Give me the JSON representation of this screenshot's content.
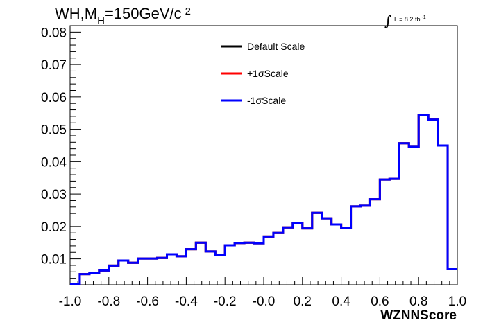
{
  "chart_data": {
    "type": "line",
    "title": {
      "prefix": "WH,M",
      "subscript": "H",
      "value": "=150GeV/c",
      "superscript": "2"
    },
    "luminosity": {
      "integral_sign": "∫",
      "text": "L = 8.2 fb",
      "exponent": "-1"
    },
    "xlabel": "WZNNScore",
    "ylabel": "",
    "xlim": [
      -1.0,
      1.0
    ],
    "ylim": [
      0.002,
      0.082
    ],
    "x_ticks": [
      "-1.0",
      "-0.8",
      "-0.6",
      "-0.4",
      "-0.2",
      "-0.0",
      "0.2",
      "0.4",
      "0.6",
      "0.8",
      "1.0"
    ],
    "y_ticks": [
      "0.01",
      "0.02",
      "0.03",
      "0.04",
      "0.05",
      "0.06",
      "0.07",
      "0.08"
    ],
    "grid": false,
    "legend_position": "top-center",
    "bin_edges": [
      -1.0,
      -0.95,
      -0.9,
      -0.85,
      -0.8,
      -0.75,
      -0.7,
      -0.65,
      -0.6,
      -0.55,
      -0.5,
      -0.45,
      -0.4,
      -0.35,
      -0.3,
      -0.25,
      -0.2,
      -0.15,
      -0.1,
      -0.05,
      0.0,
      0.05,
      0.1,
      0.15,
      0.2,
      0.25,
      0.3,
      0.35,
      0.4,
      0.45,
      0.5,
      0.55,
      0.6,
      0.65,
      0.7,
      0.75,
      0.8,
      0.85,
      0.9,
      0.95,
      1.0
    ],
    "series": [
      {
        "name": "Default Scale",
        "color": "#000000",
        "values": [
          0.0023,
          0.0053,
          0.0056,
          0.0064,
          0.0079,
          0.0095,
          0.0088,
          0.0101,
          0.0101,
          0.0103,
          0.0114,
          0.0108,
          0.013,
          0.015,
          0.0123,
          0.0111,
          0.0142,
          0.0149,
          0.015,
          0.0148,
          0.0169,
          0.018,
          0.0197,
          0.0211,
          0.0194,
          0.0242,
          0.0225,
          0.0206,
          0.0195,
          0.0262,
          0.0264,
          0.0284,
          0.0345,
          0.0347,
          0.0457,
          0.0446,
          0.0543,
          0.053,
          0.045,
          0.0068
        ]
      },
      {
        "name": "+1σScale",
        "color": "#ff0000",
        "values": [
          0.0023,
          0.0053,
          0.0056,
          0.0064,
          0.0079,
          0.0095,
          0.0088,
          0.0101,
          0.0101,
          0.0103,
          0.0114,
          0.0108,
          0.013,
          0.015,
          0.0123,
          0.0111,
          0.0142,
          0.0149,
          0.015,
          0.0148,
          0.0169,
          0.018,
          0.0197,
          0.0211,
          0.0194,
          0.0242,
          0.0225,
          0.0206,
          0.0195,
          0.0262,
          0.0264,
          0.0284,
          0.0345,
          0.0347,
          0.0457,
          0.0446,
          0.0543,
          0.053,
          0.045,
          0.0068
        ]
      },
      {
        "name": "-1σScale",
        "color": "#0000ff",
        "values": [
          0.0023,
          0.0053,
          0.0056,
          0.0064,
          0.0079,
          0.0095,
          0.0088,
          0.0101,
          0.0101,
          0.0103,
          0.0114,
          0.0108,
          0.013,
          0.015,
          0.0123,
          0.0111,
          0.0142,
          0.0149,
          0.015,
          0.0148,
          0.0169,
          0.018,
          0.0197,
          0.0211,
          0.0194,
          0.0242,
          0.0225,
          0.0206,
          0.0195,
          0.0262,
          0.0264,
          0.0284,
          0.0345,
          0.0347,
          0.0457,
          0.0446,
          0.0543,
          0.053,
          0.045,
          0.0068
        ]
      }
    ]
  }
}
